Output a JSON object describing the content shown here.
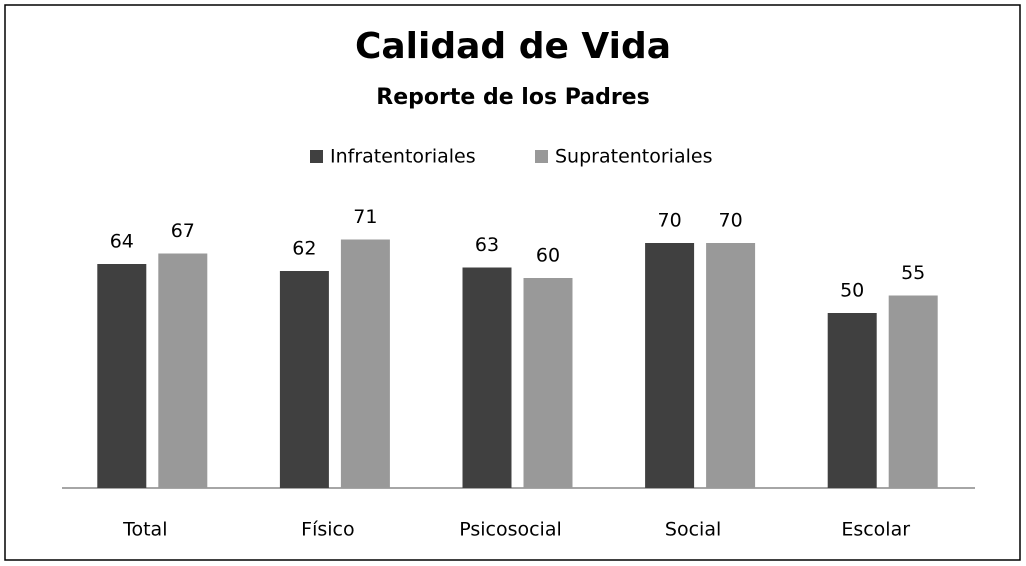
{
  "chart_data": {
    "type": "bar",
    "title": "Calidad de Vida",
    "subtitle": "Reporte de los Padres",
    "categories": [
      "Total",
      "Físico",
      "Psicosocial",
      "Social",
      "Escolar"
    ],
    "series": [
      {
        "name": "Infratentoriales",
        "color": "#404040",
        "values": [
          64,
          62,
          63,
          70,
          50
        ]
      },
      {
        "name": "Supratentoriales",
        "color": "#999999",
        "values": [
          67,
          71,
          60,
          70,
          55
        ]
      }
    ]
  }
}
